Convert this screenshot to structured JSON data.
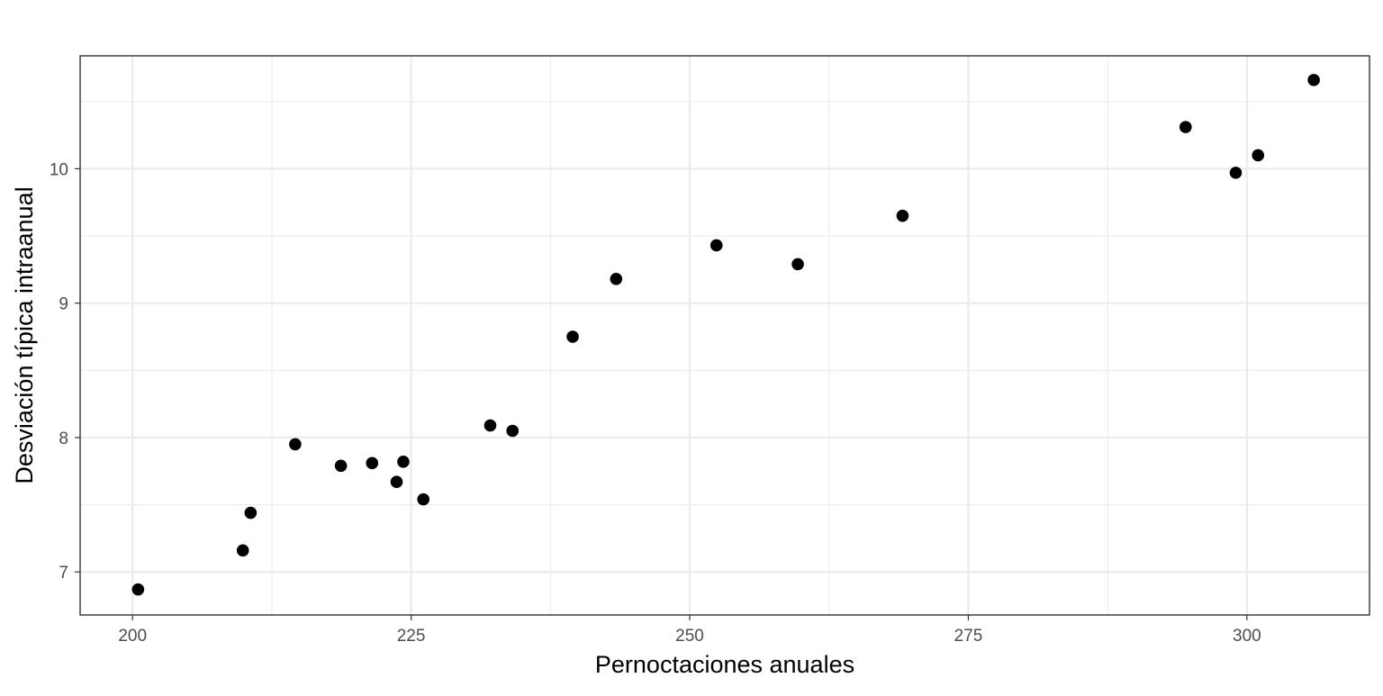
{
  "chart_data": {
    "type": "scatter",
    "title": "",
    "xlabel": "Pernoctaciones anuales",
    "ylabel": "Desviación típica intraanual",
    "xlim": [
      195.3,
      311.0
    ],
    "ylim": [
      6.68,
      10.84
    ],
    "x_ticks": [
      200,
      225,
      250,
      275,
      300
    ],
    "y_ticks": [
      7,
      8,
      9,
      10
    ],
    "grid": true,
    "legend": "none",
    "point_color": "#000000",
    "points": [
      {
        "x": 200.5,
        "y": 6.87
      },
      {
        "x": 209.9,
        "y": 7.16
      },
      {
        "x": 210.6,
        "y": 7.44
      },
      {
        "x": 214.6,
        "y": 7.95
      },
      {
        "x": 218.7,
        "y": 7.79
      },
      {
        "x": 221.5,
        "y": 7.81
      },
      {
        "x": 223.7,
        "y": 7.67
      },
      {
        "x": 224.3,
        "y": 7.82
      },
      {
        "x": 226.1,
        "y": 7.54
      },
      {
        "x": 232.1,
        "y": 8.09
      },
      {
        "x": 234.1,
        "y": 8.05
      },
      {
        "x": 239.5,
        "y": 8.75
      },
      {
        "x": 243.4,
        "y": 9.18
      },
      {
        "x": 252.4,
        "y": 9.43
      },
      {
        "x": 259.7,
        "y": 9.29
      },
      {
        "x": 269.1,
        "y": 9.65
      },
      {
        "x": 294.5,
        "y": 10.31
      },
      {
        "x": 299.0,
        "y": 9.97
      },
      {
        "x": 301.0,
        "y": 10.1
      },
      {
        "x": 306.0,
        "y": 10.66
      }
    ]
  }
}
